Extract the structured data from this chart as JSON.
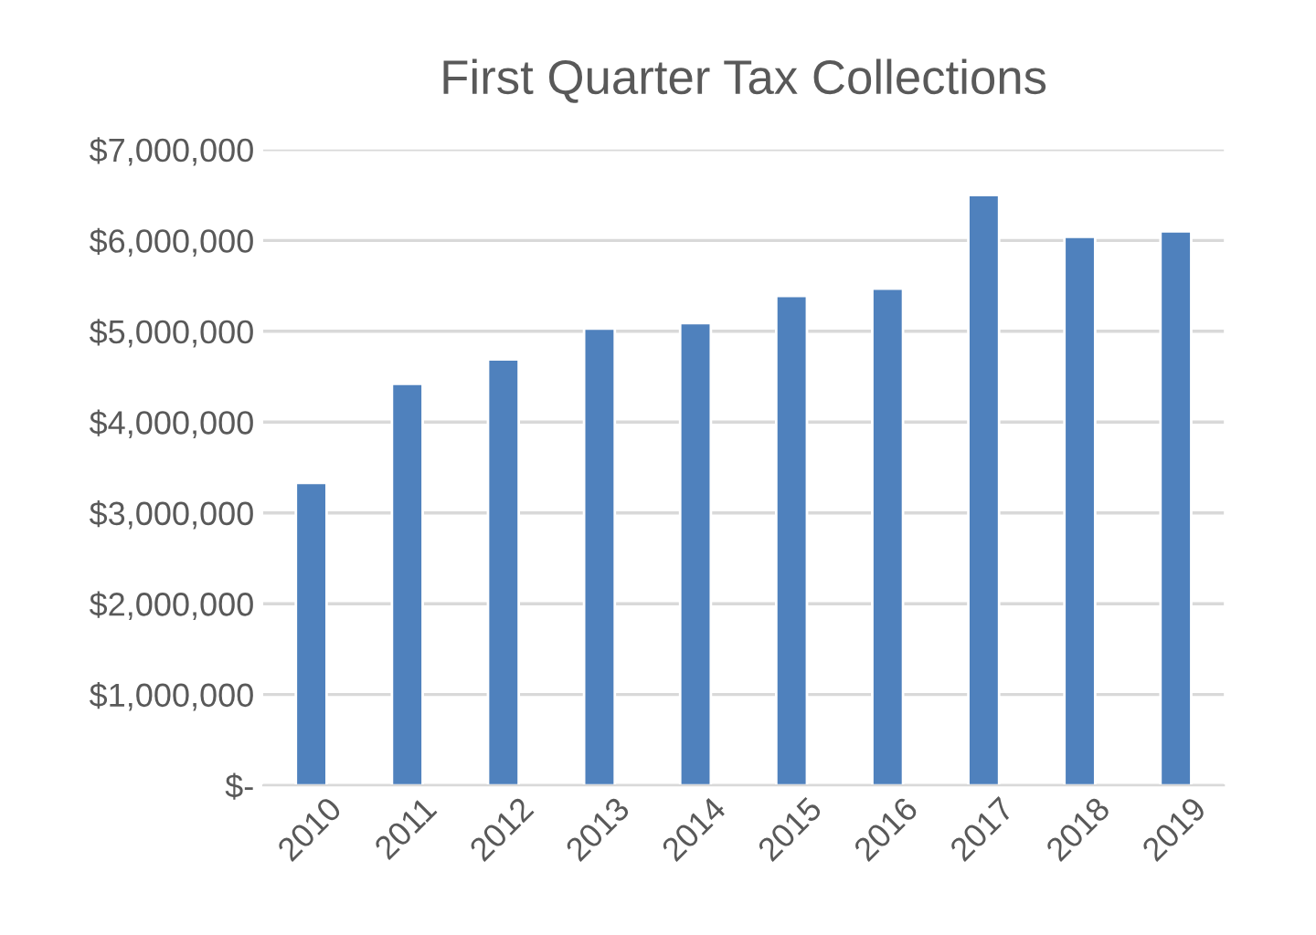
{
  "chart_data": {
    "type": "bar",
    "title": "First Quarter Tax Collections",
    "categories": [
      "2010",
      "2011",
      "2012",
      "2013",
      "2014",
      "2015",
      "2016",
      "2017",
      "2018",
      "2019"
    ],
    "values": [
      3330000,
      4420000,
      4690000,
      5030000,
      5090000,
      5390000,
      5470000,
      6500000,
      6040000,
      6100000
    ],
    "color": "#4f81bd",
    "ylim": [
      0,
      7000000
    ],
    "yticks": [
      {
        "value": 0,
        "label": "$-"
      },
      {
        "value": 1000000,
        "label": "$1,000,000"
      },
      {
        "value": 2000000,
        "label": "$2,000,000"
      },
      {
        "value": 3000000,
        "label": "$3,000,000"
      },
      {
        "value": 4000000,
        "label": "$4,000,000"
      },
      {
        "value": 5000000,
        "label": "$5,000,000"
      },
      {
        "value": 6000000,
        "label": "$6,000,000"
      },
      {
        "value": 7000000,
        "label": "$7,000,000"
      }
    ],
    "grid": "y",
    "legend": false
  }
}
